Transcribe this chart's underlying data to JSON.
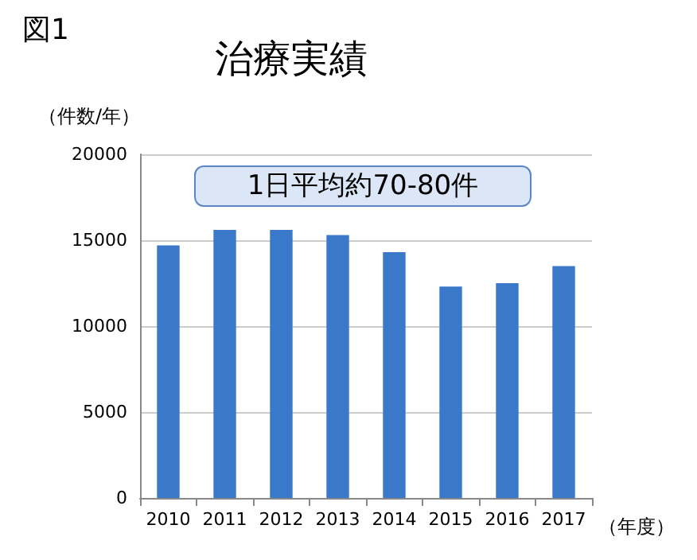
{
  "chart_data": {
    "type": "bar",
    "title": "治療実績",
    "subtitle": "図1",
    "ylabel": "（件数/年）",
    "xlabel": "（年度）",
    "categories": [
      "2010",
      "2011",
      "2012",
      "2013",
      "2014",
      "2015",
      "2016",
      "2017"
    ],
    "values": [
      14700,
      15600,
      15600,
      15300,
      14300,
      12300,
      12500,
      13500
    ],
    "color": "#3a78c9",
    "ylim": [
      0,
      20000
    ],
    "yticks": [
      0,
      5000,
      10000,
      15000,
      20000
    ],
    "grid": "y",
    "annotations": [
      "1日平均約70-80件"
    ]
  }
}
